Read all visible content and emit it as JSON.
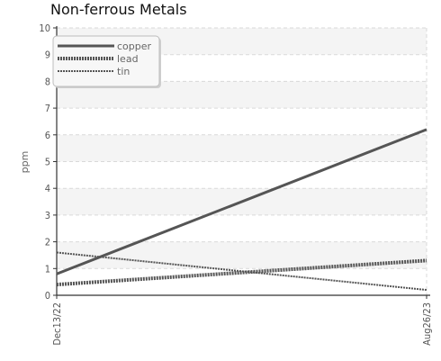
{
  "chart_data": {
    "type": "line",
    "title": "Non-ferrous Metals",
    "xlabel": "",
    "ylabel": "ppm",
    "x": [
      "Dec13/22",
      "Aug26/23"
    ],
    "ylim": [
      0,
      10
    ],
    "y_ticks": [
      0,
      1,
      2,
      3,
      4,
      5,
      6,
      7,
      8,
      9,
      10
    ],
    "grid": true,
    "legend_position": "top-left",
    "series": [
      {
        "name": "copper",
        "values": [
          0.8,
          6.2
        ],
        "color": "#555555",
        "style": "solid"
      },
      {
        "name": "lead",
        "values": [
          0.4,
          1.3
        ],
        "color": "#555555",
        "style": "dotted-thick"
      },
      {
        "name": "tin",
        "values": [
          1.6,
          0.2
        ],
        "color": "#555555",
        "style": "dotted-thin"
      }
    ]
  }
}
